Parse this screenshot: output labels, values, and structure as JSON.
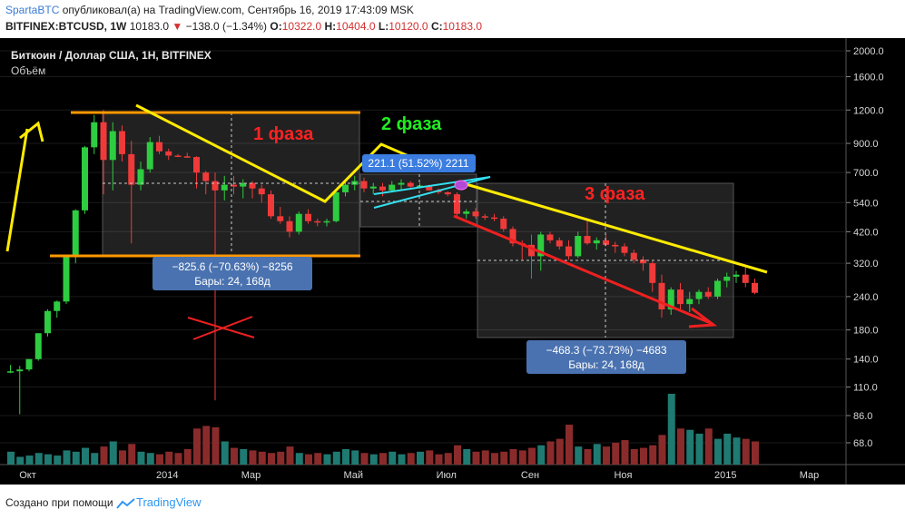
{
  "header": {
    "author": "SpartaBTC",
    "published": "опубликовал(а) на TradingView.com, Сентябрь 16, 2019 17:43:09 MSK",
    "symbol": "BITFINEX:BTCUSD, 1W",
    "last": "10183.0",
    "change": "−138.0 (−1.34%)",
    "o_label": "O:",
    "o_val": "10322.0",
    "h_label": "H:",
    "h_val": "10404.0",
    "l_label": "L:",
    "l_val": "10120.0",
    "c_label": "C:",
    "c_val": "10183.0"
  },
  "chart": {
    "title": "Биткоин / Доллар США, 1Н, BITFINEX",
    "volume_label": "Объём",
    "phase1": "1 фаза",
    "phase2": "2 фаза",
    "phase3": "3 фаза",
    "measure1_line1": "−825.6 (−70.63%) −8256",
    "measure1_line2": "Бары: 24, 168д",
    "measure2_line1": "221.1 (51.52%) 2211",
    "measure3_line1": "−468.3 (−73.73%) −4683",
    "measure3_line2": "Бары: 24, 168д"
  },
  "colors": {
    "up": "#2ecc40",
    "down": "#f03a3a",
    "vol_up": "#1f7a72",
    "vol_down": "#8a2b2b",
    "trend": "#ffeb00",
    "range": "#ff9900",
    "measure_box": "#4a72b0",
    "background": "#000000",
    "phase1": "#ff2222",
    "phase2": "#22ee22",
    "phase3": "#ff2222"
  },
  "chart_data": {
    "type": "candlestick",
    "scale": "log",
    "y_ticks": [
      "2000.0",
      "1600.0",
      "1200.0",
      "900.0",
      "700.0",
      "540.0",
      "420.0",
      "320.0",
      "240.0",
      "180.0",
      "140.0",
      "110.0",
      "86.0",
      "68.0"
    ],
    "x_ticks": [
      "Окт",
      "2014",
      "Мар",
      "Май",
      "Июл",
      "Сен",
      "Ноя",
      "2015",
      "Мар"
    ],
    "ylim": [
      60,
      2100
    ],
    "candles": [
      {
        "o": 125,
        "h": 133,
        "l": 124,
        "c": 126
      },
      {
        "o": 126,
        "h": 132,
        "l": 87,
        "c": 128
      },
      {
        "o": 128,
        "h": 140,
        "l": 126,
        "c": 140
      },
      {
        "o": 140,
        "h": 175,
        "l": 138,
        "c": 175
      },
      {
        "o": 175,
        "h": 215,
        "l": 170,
        "c": 212
      },
      {
        "o": 212,
        "h": 232,
        "l": 200,
        "c": 230
      },
      {
        "o": 230,
        "h": 340,
        "l": 225,
        "c": 340
      },
      {
        "o": 340,
        "h": 510,
        "l": 320,
        "c": 505
      },
      {
        "o": 505,
        "h": 880,
        "l": 490,
        "c": 870
      },
      {
        "o": 870,
        "h": 1150,
        "l": 820,
        "c": 1080
      },
      {
        "o": 1080,
        "h": 1200,
        "l": 580,
        "c": 780
      },
      {
        "o": 780,
        "h": 1080,
        "l": 600,
        "c": 1000
      },
      {
        "o": 1000,
        "h": 1050,
        "l": 770,
        "c": 820
      },
      {
        "o": 820,
        "h": 920,
        "l": 380,
        "c": 630
      },
      {
        "o": 630,
        "h": 770,
        "l": 600,
        "c": 720
      },
      {
        "o": 720,
        "h": 950,
        "l": 700,
        "c": 910
      },
      {
        "o": 910,
        "h": 960,
        "l": 820,
        "c": 840
      },
      {
        "o": 840,
        "h": 860,
        "l": 780,
        "c": 810
      },
      {
        "o": 810,
        "h": 820,
        "l": 800,
        "c": 805
      },
      {
        "o": 805,
        "h": 830,
        "l": 795,
        "c": 800
      },
      {
        "o": 800,
        "h": 805,
        "l": 610,
        "c": 700
      },
      {
        "o": 700,
        "h": 710,
        "l": 580,
        "c": 650
      },
      {
        "o": 650,
        "h": 700,
        "l": 98,
        "c": 600
      },
      {
        "o": 600,
        "h": 680,
        "l": 550,
        "c": 630
      },
      {
        "o": 630,
        "h": 680,
        "l": 580,
        "c": 620
      },
      {
        "o": 620,
        "h": 660,
        "l": 560,
        "c": 640
      },
      {
        "o": 640,
        "h": 650,
        "l": 560,
        "c": 610
      },
      {
        "o": 610,
        "h": 630,
        "l": 540,
        "c": 580
      },
      {
        "o": 580,
        "h": 600,
        "l": 470,
        "c": 480
      },
      {
        "o": 480,
        "h": 520,
        "l": 450,
        "c": 460
      },
      {
        "o": 460,
        "h": 480,
        "l": 400,
        "c": 420
      },
      {
        "o": 420,
        "h": 500,
        "l": 410,
        "c": 490
      },
      {
        "o": 490,
        "h": 510,
        "l": 450,
        "c": 460
      },
      {
        "o": 460,
        "h": 470,
        "l": 440,
        "c": 455
      },
      {
        "o": 455,
        "h": 470,
        "l": 440,
        "c": 460
      },
      {
        "o": 460,
        "h": 600,
        "l": 455,
        "c": 590
      },
      {
        "o": 590,
        "h": 650,
        "l": 570,
        "c": 630
      },
      {
        "o": 630,
        "h": 680,
        "l": 600,
        "c": 650
      },
      {
        "o": 650,
        "h": 670,
        "l": 590,
        "c": 610
      },
      {
        "o": 610,
        "h": 640,
        "l": 580,
        "c": 620
      },
      {
        "o": 620,
        "h": 640,
        "l": 570,
        "c": 600
      },
      {
        "o": 600,
        "h": 650,
        "l": 590,
        "c": 630
      },
      {
        "o": 630,
        "h": 660,
        "l": 600,
        "c": 640
      },
      {
        "o": 640,
        "h": 650,
        "l": 610,
        "c": 620
      },
      {
        "o": 620,
        "h": 640,
        "l": 610,
        "c": 625
      },
      {
        "o": 625,
        "h": 630,
        "l": 600,
        "c": 600
      },
      {
        "o": 600,
        "h": 610,
        "l": 580,
        "c": 590
      },
      {
        "o": 590,
        "h": 595,
        "l": 570,
        "c": 580
      },
      {
        "o": 580,
        "h": 590,
        "l": 480,
        "c": 490
      },
      {
        "o": 490,
        "h": 510,
        "l": 470,
        "c": 500
      },
      {
        "o": 500,
        "h": 515,
        "l": 470,
        "c": 480
      },
      {
        "o": 480,
        "h": 490,
        "l": 465,
        "c": 475
      },
      {
        "o": 475,
        "h": 490,
        "l": 460,
        "c": 470
      },
      {
        "o": 470,
        "h": 480,
        "l": 420,
        "c": 430
      },
      {
        "o": 430,
        "h": 440,
        "l": 370,
        "c": 380
      },
      {
        "o": 380,
        "h": 390,
        "l": 330,
        "c": 375
      },
      {
        "o": 375,
        "h": 410,
        "l": 280,
        "c": 340
      },
      {
        "o": 340,
        "h": 420,
        "l": 300,
        "c": 410
      },
      {
        "o": 410,
        "h": 420,
        "l": 380,
        "c": 390
      },
      {
        "o": 390,
        "h": 400,
        "l": 360,
        "c": 370
      },
      {
        "o": 370,
        "h": 390,
        "l": 330,
        "c": 340
      },
      {
        "o": 340,
        "h": 420,
        "l": 335,
        "c": 405
      },
      {
        "o": 405,
        "h": 460,
        "l": 375,
        "c": 380
      },
      {
        "o": 380,
        "h": 400,
        "l": 360,
        "c": 390
      },
      {
        "o": 390,
        "h": 410,
        "l": 370,
        "c": 375
      },
      {
        "o": 375,
        "h": 385,
        "l": 350,
        "c": 370
      },
      {
        "o": 370,
        "h": 380,
        "l": 340,
        "c": 350
      },
      {
        "o": 350,
        "h": 360,
        "l": 320,
        "c": 330
      },
      {
        "o": 330,
        "h": 340,
        "l": 300,
        "c": 320
      },
      {
        "o": 320,
        "h": 325,
        "l": 250,
        "c": 270
      },
      {
        "o": 270,
        "h": 290,
        "l": 200,
        "c": 215
      },
      {
        "o": 215,
        "h": 260,
        "l": 205,
        "c": 255
      },
      {
        "o": 255,
        "h": 270,
        "l": 215,
        "c": 225
      },
      {
        "o": 225,
        "h": 250,
        "l": 210,
        "c": 235
      },
      {
        "o": 235,
        "h": 255,
        "l": 225,
        "c": 250
      },
      {
        "o": 250,
        "h": 260,
        "l": 235,
        "c": 240
      },
      {
        "o": 240,
        "h": 280,
        "l": 235,
        "c": 275
      },
      {
        "o": 275,
        "h": 295,
        "l": 260,
        "c": 285
      },
      {
        "o": 285,
        "h": 300,
        "l": 270,
        "c": 290
      },
      {
        "o": 290,
        "h": 310,
        "l": 260,
        "c": 270
      },
      {
        "o": 270,
        "h": 280,
        "l": 245,
        "c": 248
      }
    ],
    "volume": [
      10,
      6,
      7,
      9,
      8,
      7,
      11,
      10,
      13,
      9,
      14,
      18,
      11,
      16,
      10,
      9,
      8,
      10,
      9,
      12,
      28,
      30,
      29,
      18,
      13,
      12,
      11,
      10,
      9,
      10,
      14,
      9,
      8,
      9,
      8,
      10,
      12,
      11,
      9,
      8,
      9,
      10,
      8,
      9,
      10,
      11,
      8,
      9,
      15,
      12,
      10,
      11,
      9,
      10,
      12,
      11,
      13,
      15,
      18,
      20,
      31,
      14,
      12,
      16,
      14,
      17,
      19,
      12,
      13,
      15,
      23,
      55,
      28,
      27,
      24,
      28,
      20,
      24,
      21,
      20,
      18
    ]
  }
}
